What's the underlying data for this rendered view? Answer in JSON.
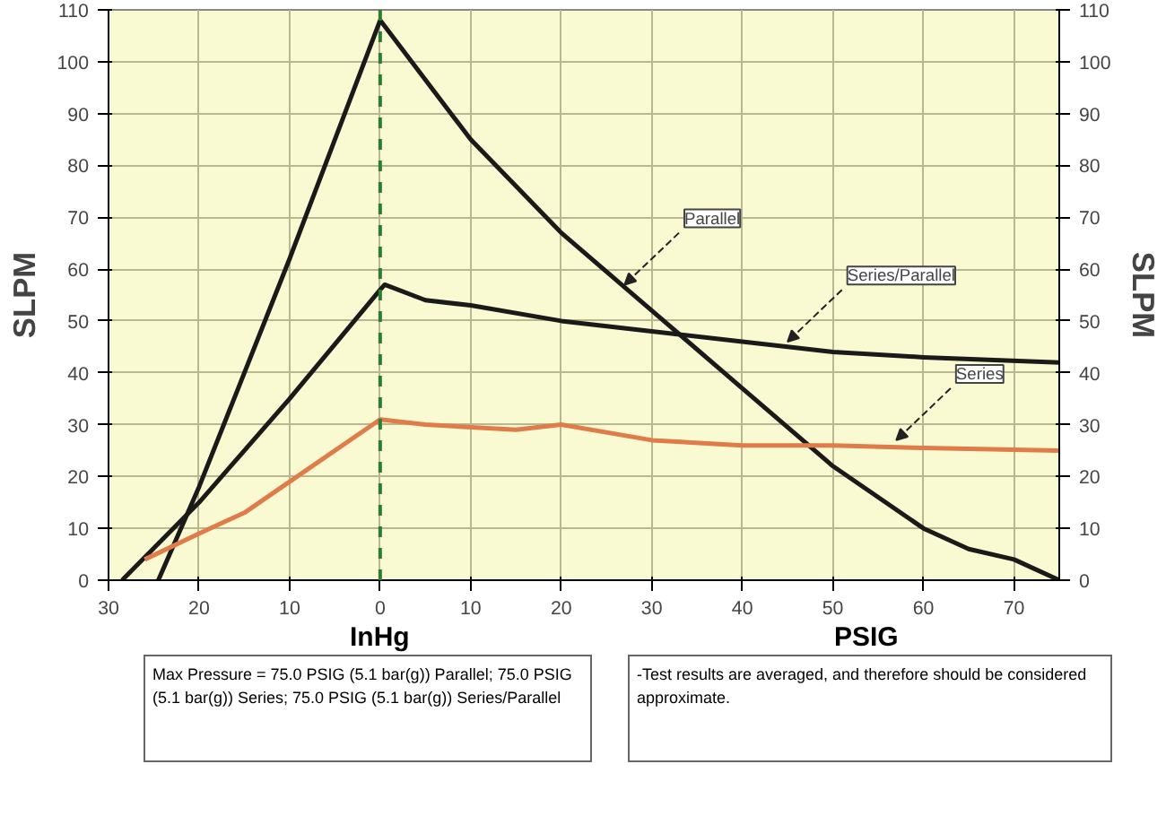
{
  "chart_data": {
    "type": "line",
    "xlabel": "InHg",
    "ylabel": "SLPM",
    "y2label": "SLPM",
    "xlim": [
      -30,
      75
    ],
    "xticks": [
      {
        "value": -30,
        "label": "30"
      },
      {
        "value": -20,
        "label": "20"
      },
      {
        "value": -10,
        "label": "10"
      },
      0,
      10,
      20,
      30,
      40,
      50,
      60,
      70
    ],
    "ylim": [
      0,
      110
    ],
    "yticks": [
      0,
      10,
      20,
      30,
      40,
      50,
      60,
      70,
      80,
      90,
      100,
      110
    ],
    "y2lim": [
      0,
      110
    ],
    "y2ticks": [
      0,
      10,
      20,
      30,
      40,
      50,
      60,
      70,
      80,
      90,
      100,
      110
    ],
    "grid": true,
    "line_style": "solid",
    "series": [
      {
        "color": "#1a1a1a",
        "x": [
          -24.5,
          -20,
          -10,
          0,
          10,
          20,
          30,
          40,
          50,
          60,
          65,
          70,
          75
        ],
        "values": [
          0,
          18,
          62,
          108,
          85,
          67,
          52,
          37,
          22,
          10,
          6,
          4,
          0
        ]
      },
      {
        "color": "#1a1a1a",
        "x": [
          -28.5,
          -20,
          -10,
          0,
          0.5,
          5,
          10,
          20,
          30,
          40,
          50,
          60,
          75
        ],
        "values": [
          0,
          15,
          35,
          56,
          57,
          54,
          53,
          50,
          48,
          46,
          44,
          43,
          42
        ]
      },
      {
        "color": "#e07b4a",
        "x": [
          -26,
          -20,
          -15,
          -10,
          0,
          5,
          15,
          20,
          30,
          40,
          50,
          60,
          75
        ],
        "values": [
          4,
          9,
          13,
          19,
          31,
          30,
          29,
          30,
          27,
          26,
          26,
          25.5,
          25
        ]
      }
    ],
    "ref_lines": [
      {
        "axis": "x",
        "value": 0,
        "color": "#2e7d32",
        "line_style": "dashed"
      }
    ],
    "annotations": [
      {
        "text": "Parallel",
        "x": 27,
        "y": 57
      },
      {
        "text": "Series/Parallel",
        "x": 45,
        "y": 46
      },
      {
        "text": "Series",
        "x": 57,
        "y": 27
      },
      "PSIG",
      "Max Pressure = 75.0 PSIG (5.1 bar(g)) Parallel; 75.0 PSIG (5.1 bar(g)) Series; 75.0 PSIG (5.1 bar(g)) Series/Parallel",
      "-Test results are averaged, and therefore should be considered approximate."
    ]
  }
}
